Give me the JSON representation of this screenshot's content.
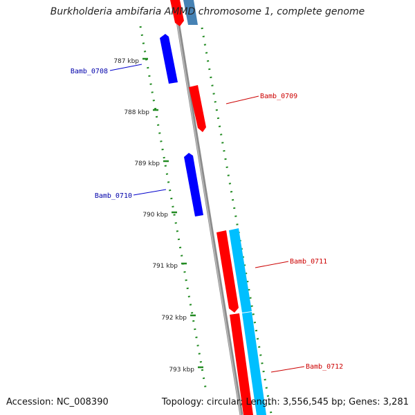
{
  "title": "Burkholderia ambifaria AMMD chromosome 1, complete genome",
  "footer": {
    "accession": "Accession: NC_008390",
    "summary": "Topology: circular; Length: 3,556,545 bp; Genes: 3,281"
  },
  "colors": {
    "backbone": "#8c8c8c",
    "tick": "#228b22",
    "forward_cds": "#ff0000",
    "reverse_cds": "#0000ff",
    "forward_gene": "#00bfff",
    "label_forward": "#cc0000",
    "label_reverse": "#0000aa"
  },
  "scale": {
    "ticks": [
      {
        "label": "787 kbp"
      },
      {
        "label": "788 kbp"
      },
      {
        "label": "789 kbp"
      },
      {
        "label": "790 kbp"
      },
      {
        "label": "791 kbp"
      },
      {
        "label": "792 kbp"
      },
      {
        "label": "793 kbp"
      }
    ]
  },
  "genes": [
    {
      "name": "Bamb_0708",
      "strand": "reverse"
    },
    {
      "name": "Bamb_0709",
      "strand": "forward"
    },
    {
      "name": "Bamb_0710",
      "strand": "reverse"
    },
    {
      "name": "Bamb_0711",
      "strand": "forward"
    },
    {
      "name": "Bamb_0712",
      "strand": "forward"
    }
  ]
}
